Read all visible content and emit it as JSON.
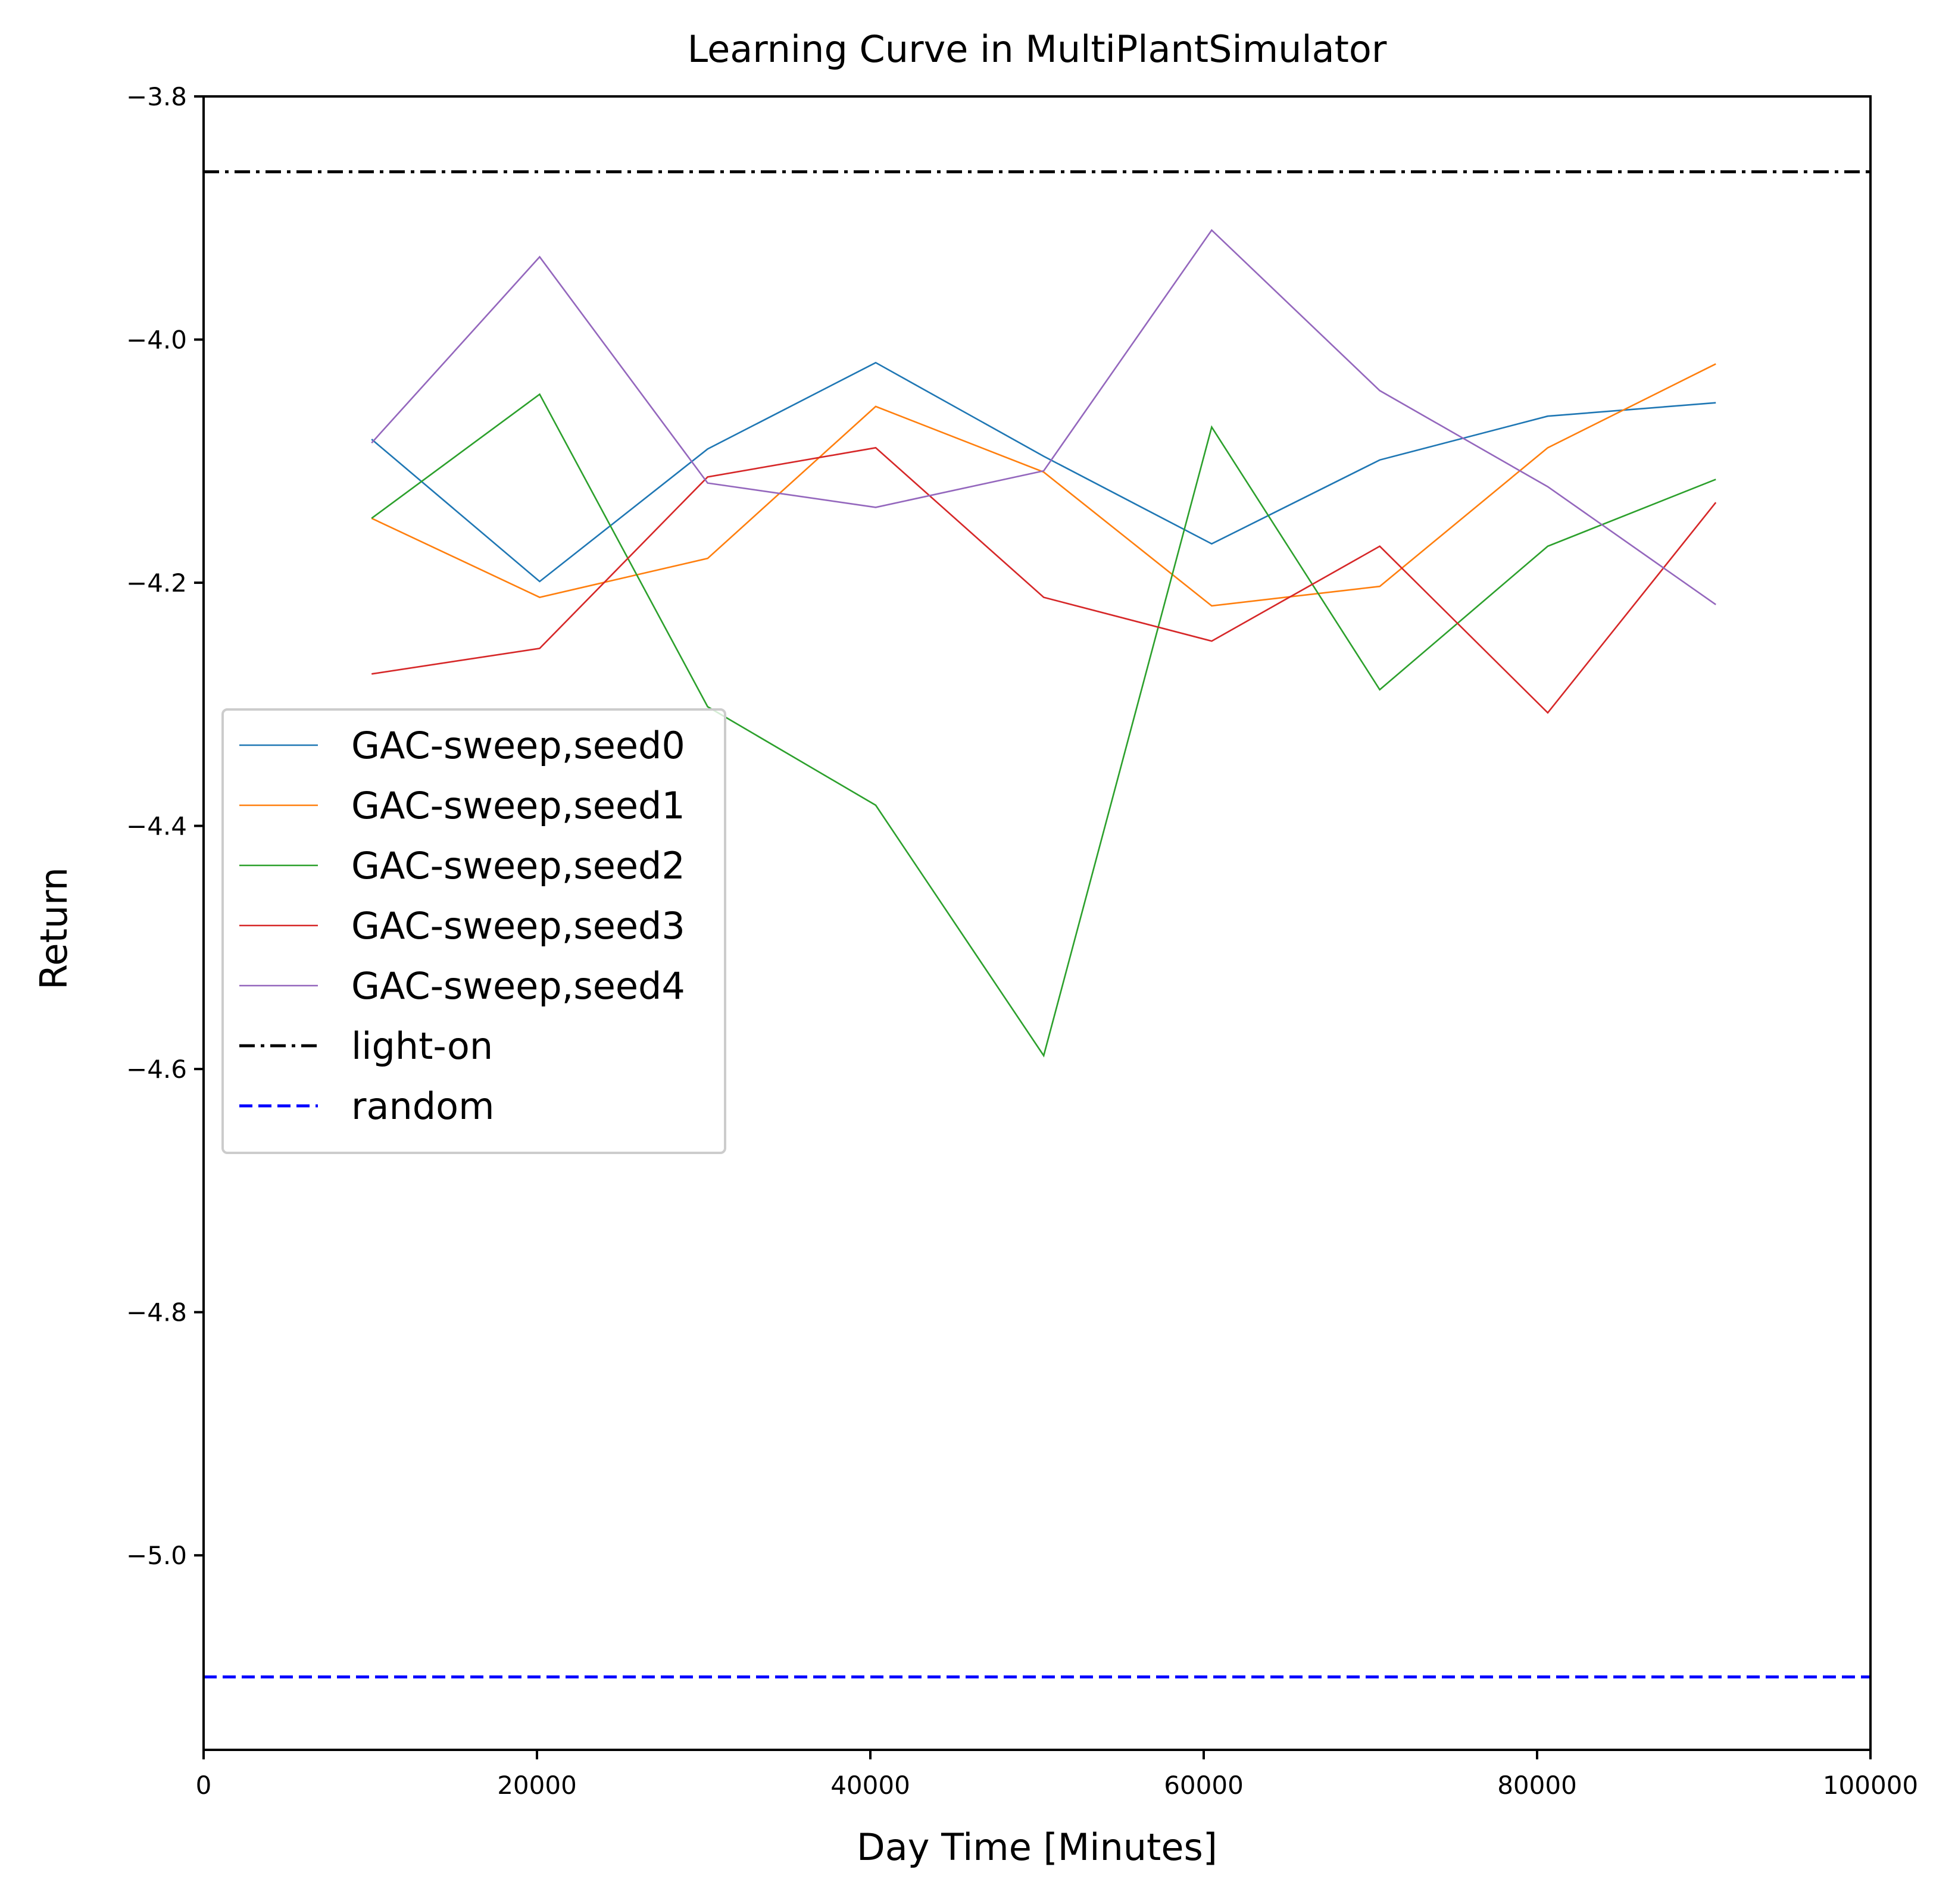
{
  "chart_data": {
    "type": "line",
    "title": "Learning Curve in MultiPlantSimulator",
    "xlabel": "Day Time [Minutes]",
    "ylabel": "Return",
    "xlim": [
      0,
      100000
    ],
    "ylim": [
      -5.16,
      -3.8
    ],
    "x_ticks": [
      0,
      20000,
      40000,
      60000,
      80000,
      100000
    ],
    "x_tick_labels": [
      "0",
      "20000",
      "40000",
      "60000",
      "80000",
      "100000"
    ],
    "y_ticks": [
      -3.8,
      -4.0,
      -4.2,
      -4.4,
      -4.6,
      -4.8,
      -5.0
    ],
    "y_tick_labels": [
      "−3.8",
      "−4.0",
      "−4.2",
      "−4.4",
      "−4.6",
      "−4.8",
      "−5.0"
    ],
    "grid": false,
    "legend_position": "center-left",
    "x": [
      10080,
      20160,
      30240,
      40320,
      50400,
      60480,
      70560,
      80640,
      90720
    ],
    "series": [
      {
        "name": "GAC-sweep,seed0",
        "color": "#1f77b4",
        "style": "solid",
        "values": [
          -4.082,
          -4.199,
          -4.09,
          -4.019,
          -4.096,
          -4.168,
          -4.099,
          -4.063,
          -4.052
        ]
      },
      {
        "name": "GAC-sweep,seed1",
        "color": "#ff7f0e",
        "style": "solid",
        "values": [
          -4.147,
          -4.212,
          -4.18,
          -4.055,
          -4.109,
          -4.219,
          -4.203,
          -4.089,
          -4.02
        ]
      },
      {
        "name": "GAC-sweep,seed2",
        "color": "#2ca02c",
        "style": "solid",
        "values": [
          -4.147,
          -4.045,
          -4.302,
          -4.383,
          -4.589,
          -4.072,
          -4.288,
          -4.17,
          -4.115
        ]
      },
      {
        "name": "GAC-sweep,seed3",
        "color": "#d62728",
        "style": "solid",
        "values": [
          -4.275,
          -4.254,
          -4.113,
          -4.089,
          -4.212,
          -4.248,
          -4.17,
          -4.307,
          -4.134
        ]
      },
      {
        "name": "GAC-sweep,seed4",
        "color": "#9467bd",
        "style": "solid",
        "values": [
          -4.085,
          -3.932,
          -4.118,
          -4.138,
          -4.108,
          -3.91,
          -4.042,
          -4.121,
          -4.218
        ]
      }
    ],
    "reference_lines": [
      {
        "name": "light-on",
        "color": "#000000",
        "style": "dashdot",
        "value": -3.862
      },
      {
        "name": "random",
        "color": "#0000ff",
        "style": "dashed",
        "value": -5.1
      }
    ]
  }
}
